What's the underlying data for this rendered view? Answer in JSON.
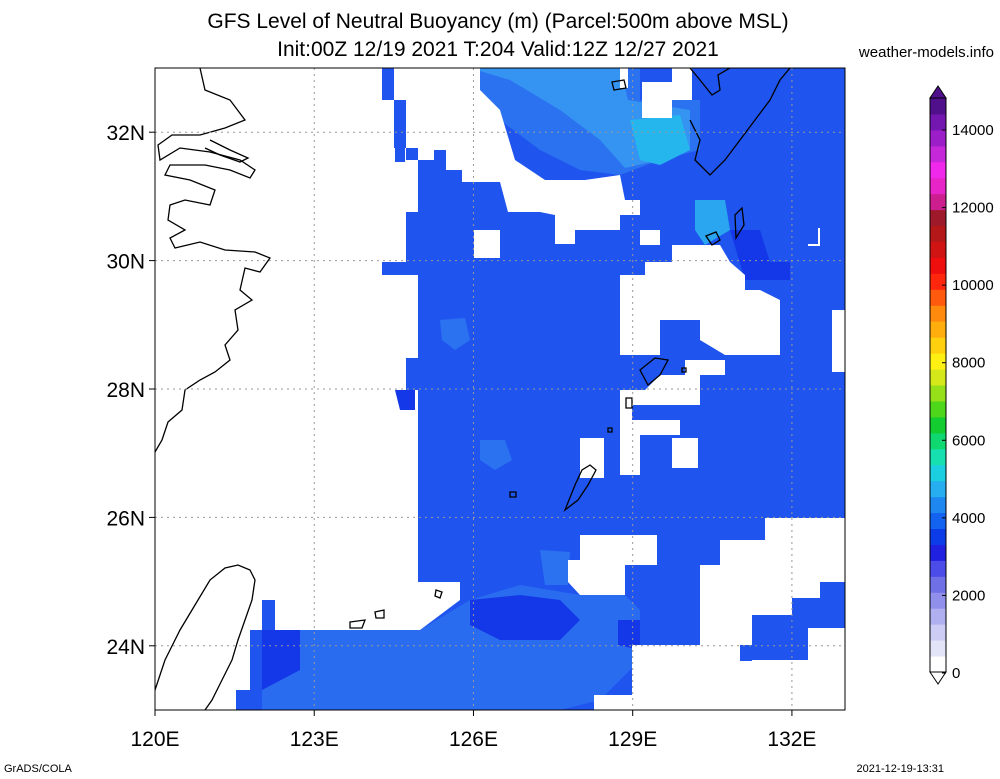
{
  "header": {
    "title_line1": "GFS Level of Neutral Buoyancy (m) (Parcel:500m above MSL)",
    "title_line2": "Init:00Z 12/19 2021 T:204 Valid:12Z 12/27 2021",
    "site": "weather-models.info"
  },
  "footer": {
    "software": "GrADS/COLA",
    "timestamp": "2021-12-19-13:31"
  },
  "map": {
    "lon_range": [
      120,
      133
    ],
    "lat_range": [
      23,
      33
    ],
    "lon_ticks": [
      "120E",
      "123E",
      "126E",
      "129E",
      "132E"
    ],
    "lat_ticks": [
      "32N",
      "30N",
      "28N",
      "26N",
      "24N"
    ],
    "grid": true,
    "fill_colors": {
      "main": "#1f55ee",
      "dark": "#1438e8",
      "mid": "#2a78f0",
      "light": "#3399f0",
      "cyan": "#22c8e8"
    }
  },
  "colorbar": {
    "labels": [
      "0",
      "2000",
      "4000",
      "6000",
      "8000",
      "10000",
      "12000",
      "14000"
    ],
    "colors": [
      "#ffffff",
      "#e4e4f8",
      "#ccccf4",
      "#b0b0f0",
      "#9090ec",
      "#6f6fe6",
      "#4c4ce8",
      "#2020e0",
      "#0c3ce8",
      "#1462f0",
      "#1e88f0",
      "#26aef0",
      "#1ccfe0",
      "#16e0b0",
      "#10d870",
      "#12cc30",
      "#4ed61a",
      "#96e01a",
      "#d4e81a",
      "#fff014",
      "#ffd00e",
      "#ffae0e",
      "#ff8a0e",
      "#ff5a0e",
      "#ff260e",
      "#ee0e0e",
      "#d01414",
      "#b41818",
      "#9e1a2a",
      "#cc1e8e",
      "#e624c8",
      "#f028ec",
      "#c428d8",
      "#9c1ec8",
      "#7416b0",
      "#50108c"
    ]
  }
}
